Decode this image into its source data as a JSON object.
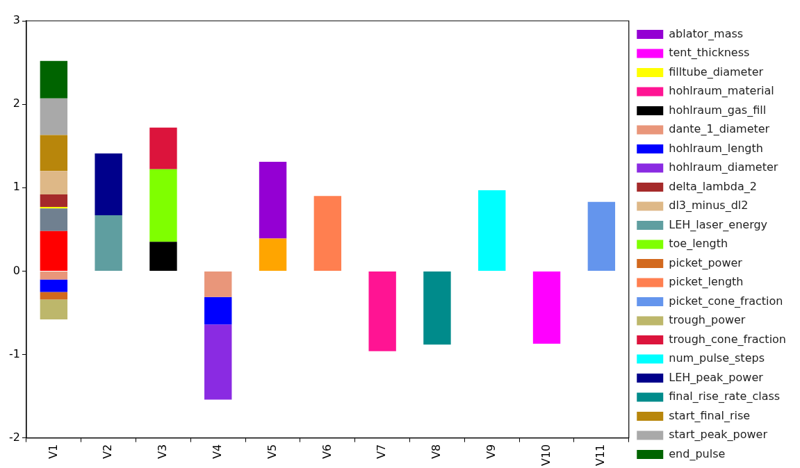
{
  "chart_data": {
    "type": "bar",
    "stacked": true,
    "categories": [
      "V1",
      "V2",
      "V3",
      "V4",
      "V5",
      "V6",
      "V7",
      "V8",
      "V9",
      "V10",
      "V11"
    ],
    "ylim": [
      -2,
      3
    ],
    "yticks": [
      -2,
      -1,
      0,
      1,
      2,
      3
    ],
    "grid": false,
    "legend": "right",
    "series": [
      {
        "color": "#ff0000",
        "values": [
          0.48,
          null,
          null,
          null,
          null,
          null,
          null,
          null,
          null,
          null,
          null
        ]
      },
      {
        "color": "#708090",
        "values": [
          0.27,
          null,
          null,
          null,
          null,
          null,
          null,
          null,
          null,
          null,
          null
        ]
      },
      {
        "color": "#ffa500",
        "values": [
          null,
          null,
          null,
          null,
          0.39,
          null,
          null,
          null,
          null,
          null,
          null
        ]
      },
      {
        "name": "ablator_mass",
        "color": "#9400d3",
        "values": [
          null,
          null,
          null,
          null,
          0.92,
          null,
          null,
          null,
          null,
          null,
          null
        ]
      },
      {
        "name": "tent_thickness",
        "color": "#ff00ff",
        "values": [
          null,
          null,
          null,
          null,
          null,
          null,
          null,
          null,
          null,
          -0.87,
          null
        ]
      },
      {
        "name": "filltube_diameter",
        "color": "#ffff00",
        "values": [
          0.02,
          null,
          null,
          null,
          null,
          null,
          null,
          null,
          null,
          null,
          null
        ]
      },
      {
        "name": "hohlraum_material",
        "color": "#ff1493",
        "values": [
          null,
          null,
          null,
          null,
          null,
          null,
          -0.96,
          null,
          null,
          null,
          null
        ]
      },
      {
        "name": "hohlraum_gas_fill",
        "color": "#000000",
        "values": [
          null,
          null,
          0.35,
          null,
          null,
          null,
          null,
          null,
          null,
          null,
          null
        ]
      },
      {
        "name": "dante_1_diameter",
        "color": "#e9967a",
        "values": [
          -0.1,
          null,
          null,
          -0.31,
          null,
          null,
          null,
          null,
          null,
          null,
          null
        ]
      },
      {
        "name": "hohlraum_length",
        "color": "#0000ff",
        "values": [
          -0.15,
          null,
          null,
          -0.33,
          null,
          null,
          null,
          null,
          null,
          null,
          null
        ]
      },
      {
        "name": "hohlraum_diameter",
        "color": "#8a2be2",
        "values": [
          null,
          null,
          null,
          -0.9,
          null,
          null,
          null,
          null,
          null,
          null,
          null
        ]
      },
      {
        "name": "delta_lambda_2",
        "color": "#a52a2a",
        "values": [
          0.15,
          null,
          null,
          null,
          null,
          null,
          null,
          null,
          null,
          null,
          null
        ]
      },
      {
        "name": "dl3_minus_dl2",
        "color": "#deb887",
        "values": [
          0.28,
          null,
          null,
          null,
          null,
          null,
          null,
          null,
          null,
          null,
          null
        ]
      },
      {
        "name": "LEH_laser_energy",
        "color": "#5f9ea0",
        "values": [
          null,
          0.67,
          null,
          null,
          null,
          null,
          null,
          null,
          null,
          null,
          null
        ]
      },
      {
        "name": "toe_length",
        "color": "#7fff00",
        "values": [
          null,
          null,
          0.87,
          null,
          null,
          null,
          null,
          null,
          null,
          null,
          null
        ]
      },
      {
        "name": "picket_power",
        "color": "#d2691e",
        "values": [
          -0.09,
          null,
          null,
          null,
          null,
          null,
          null,
          null,
          null,
          null,
          null
        ]
      },
      {
        "name": "picket_length",
        "color": "#ff7f50",
        "values": [
          null,
          null,
          null,
          null,
          null,
          0.9,
          null,
          null,
          null,
          null,
          null
        ]
      },
      {
        "name": "picket_cone_fraction",
        "color": "#6495ed",
        "values": [
          null,
          null,
          null,
          null,
          null,
          null,
          null,
          null,
          null,
          null,
          0.83
        ]
      },
      {
        "name": "trough_power",
        "color": "#bdb76b",
        "values": [
          -0.24,
          null,
          null,
          null,
          null,
          null,
          null,
          null,
          null,
          null,
          null
        ]
      },
      {
        "name": "trough_cone_fraction",
        "color": "#dc143c",
        "values": [
          null,
          null,
          0.5,
          null,
          null,
          null,
          null,
          null,
          null,
          null,
          null
        ]
      },
      {
        "name": "num_pulse_steps",
        "color": "#00ffff",
        "values": [
          null,
          null,
          null,
          null,
          null,
          null,
          null,
          null,
          0.97,
          null,
          null
        ]
      },
      {
        "name": "LEH_peak_power",
        "color": "#00008b",
        "values": [
          null,
          0.74,
          null,
          null,
          null,
          null,
          null,
          null,
          null,
          null,
          null
        ]
      },
      {
        "name": "final_rise_rate_class",
        "color": "#008b8b",
        "values": [
          null,
          null,
          null,
          null,
          null,
          null,
          null,
          -0.88,
          null,
          null,
          null
        ]
      },
      {
        "name": "start_final_rise",
        "color": "#b8860b",
        "values": [
          0.43,
          null,
          null,
          null,
          null,
          null,
          null,
          null,
          null,
          null,
          null
        ]
      },
      {
        "name": "start_peak_power",
        "color": "#a9a9a9",
        "values": [
          0.44,
          null,
          null,
          null,
          null,
          null,
          null,
          null,
          null,
          null,
          null
        ]
      },
      {
        "name": "end_pulse",
        "color": "#006400",
        "values": [
          0.45,
          null,
          null,
          null,
          null,
          null,
          null,
          null,
          null,
          null,
          null
        ]
      }
    ]
  }
}
